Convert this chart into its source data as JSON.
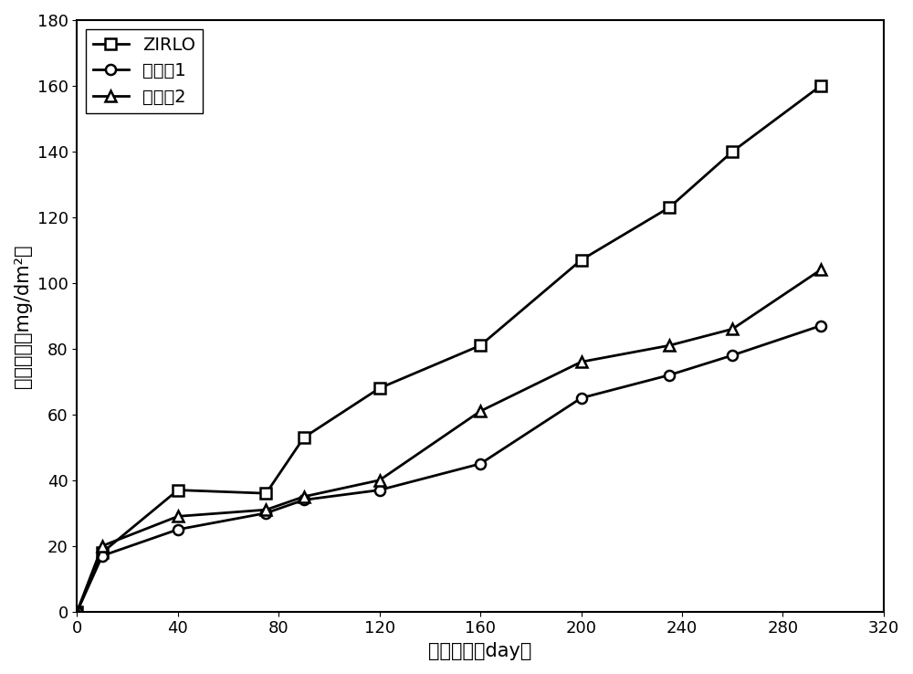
{
  "series": [
    {
      "label": "ZIRLO",
      "marker": "s",
      "x": [
        0,
        10,
        40,
        75,
        90,
        120,
        160,
        200,
        235,
        260,
        295
      ],
      "y": [
        0,
        18,
        37,
        36,
        53,
        68,
        81,
        107,
        123,
        140,
        160
      ]
    },
    {
      "label": "实施例1",
      "marker": "o",
      "x": [
        0,
        10,
        40,
        75,
        90,
        120,
        160,
        200,
        235,
        260,
        295
      ],
      "y": [
        0,
        17,
        25,
        30,
        34,
        37,
        45,
        65,
        72,
        78,
        87
      ]
    },
    {
      "label": "实施例2",
      "marker": "^",
      "x": [
        0,
        10,
        40,
        75,
        90,
        120,
        160,
        200,
        235,
        260,
        295
      ],
      "y": [
        0,
        20,
        29,
        31,
        35,
        40,
        61,
        76,
        81,
        86,
        104
      ]
    }
  ],
  "xlabel": "腐蚀时间（day）",
  "ylabel_line1": "腐蚀增重（",
  "ylabel_line2": "mg/dm",
  "ylabel_line3": "）",
  "ylabel_full": "腐蚀增重（mg/dm²）",
  "xlim": [
    0,
    320
  ],
  "ylim": [
    0,
    180
  ],
  "xticks": [
    0,
    40,
    80,
    120,
    160,
    200,
    240,
    280,
    320
  ],
  "yticks": [
    0,
    20,
    40,
    60,
    80,
    100,
    120,
    140,
    160,
    180
  ],
  "line_color": "#000000",
  "line_width": 2.0,
  "marker_size": 8,
  "legend_fontsize": 14,
  "axis_fontsize": 15,
  "tick_fontsize": 13,
  "background_color": "#ffffff"
}
